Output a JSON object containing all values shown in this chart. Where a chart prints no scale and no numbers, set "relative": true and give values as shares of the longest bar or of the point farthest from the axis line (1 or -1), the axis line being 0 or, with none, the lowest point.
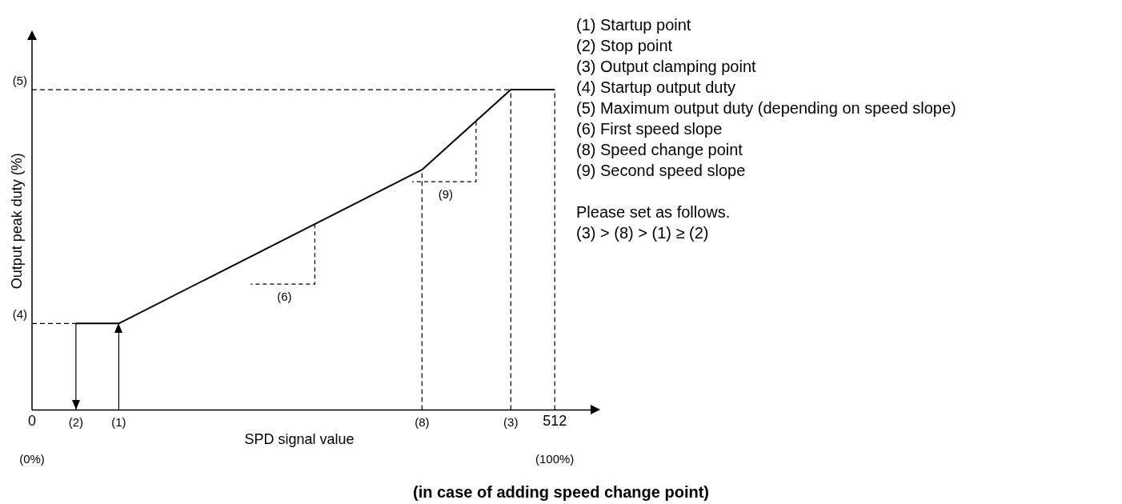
{
  "chart_data": {
    "type": "line",
    "title": "(in case of adding speed change point)",
    "xlabel": "SPD signal value",
    "ylabel": "Output peak duty (%)",
    "relative": true,
    "x": [
      43,
      85,
      382,
      469,
      512
    ],
    "series": [
      {
        "color": "#000000",
        "values": [
          0.27,
          0.27,
          0.75,
          1,
          1
        ]
      },
      {
        "x": [
          0,
          43
        ],
        "values": [
          0.27,
          0.27
        ],
        "color": "#000000",
        "line_style": "dashed"
      },
      {
        "x": [
          0,
          469
        ],
        "values": [
          1,
          1
        ],
        "color": "#000000",
        "line_style": "dashed"
      }
    ],
    "xlim": [
      0,
      555
    ],
    "xticks": [
      0,
      512
    ],
    "ref_lines": [
      {
        "axis": "x",
        "value": 382,
        "line_style": "dashed"
      },
      {
        "axis": "x",
        "value": 469,
        "line_style": "dashed"
      },
      {
        "axis": "x",
        "value": 512,
        "line_style": "dashed"
      },
      {
        "axis": "x",
        "value": 85,
        "line_style": "solid"
      },
      {
        "axis": "x",
        "value": 43,
        "line_style": "solid"
      }
    ],
    "annotations": [
      {
        "text": "(2)",
        "x": 43,
        "y": 0
      },
      {
        "text": "(1)",
        "x": 85,
        "y": 0
      },
      {
        "text": "(8)",
        "x": 382,
        "y": 0
      },
      {
        "text": "(3)",
        "x": 469,
        "y": 0
      },
      "(4)",
      "(5)",
      "(0%)",
      "(100%)",
      {
        "text": "(6)",
        "x": 277,
        "y": 0.58
      },
      {
        "text": "(9)",
        "x": 435,
        "y": 0.9
      },
      "(1) Startup point",
      "(2) Stop point",
      "(3) Output clamping point",
      "(4) Startup output duty",
      "(5) Maximum output duty (depending on speed slope)",
      "(6) First speed slope",
      "(8) Speed change point",
      "(9) Second speed slope",
      "Please set as follows.",
      "(3) > (8) > (1) ≥ (2)"
    ],
    "grid": false,
    "legend": false,
    "marker": "none",
    "line_style": "solid"
  }
}
